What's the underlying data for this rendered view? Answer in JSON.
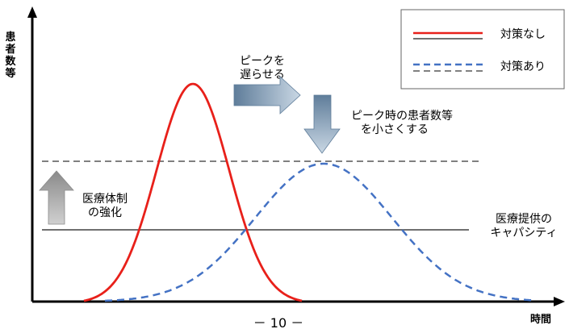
{
  "axes": {
    "y_label_chars": [
      "患",
      "者",
      "数",
      "等"
    ],
    "x_label": "時間"
  },
  "legend": {
    "items": [
      {
        "label": "対策なし",
        "style": "solid",
        "color": "#e8201a"
      },
      {
        "label": "対策あり",
        "style": "dashed",
        "color": "#4472c4"
      }
    ]
  },
  "annotations": {
    "delay_peak": [
      "ピークを",
      "遅らせる"
    ],
    "reduce_peak": [
      "ピーク時の患者数等",
      "を小さくする"
    ],
    "strengthen_care": [
      "医療体制",
      "の強化"
    ],
    "capacity": [
      "医療提供の",
      "キャパシティ"
    ]
  },
  "page_number": "－ 10 －",
  "colors": {
    "no_measure": "#e8201a",
    "with_measure": "#4472c4",
    "capacity_line": "#707070",
    "arrow_fill": "#8ea6bd"
  }
}
